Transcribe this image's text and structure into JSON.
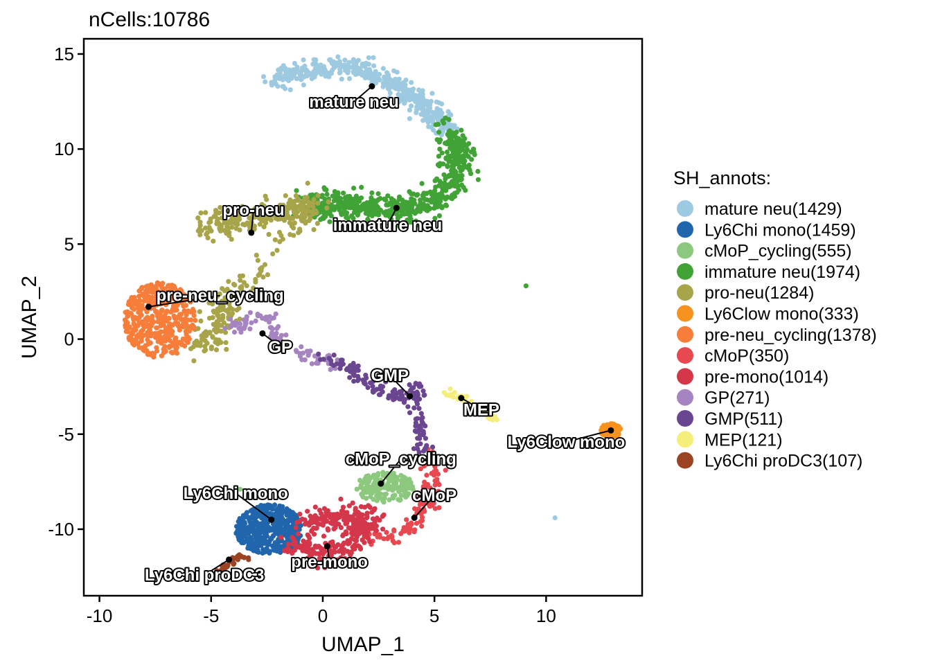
{
  "chart_data": {
    "type": "scatter",
    "title": "nCells:10786",
    "xlabel": "UMAP_1",
    "ylabel": "UMAP_2",
    "xlim": [
      -10.7,
      14.3
    ],
    "ylim": [
      -13.5,
      15.8
    ],
    "xticks": [
      -10,
      -5,
      0,
      5,
      10
    ],
    "yticks": [
      -10,
      -5,
      0,
      5,
      10,
      15
    ],
    "xtick_labels": [
      "-10",
      "-5",
      "0",
      "5",
      "10"
    ],
    "ytick_labels": [
      "-10",
      "-5",
      "0",
      "5",
      "10",
      "15"
    ],
    "legend": {
      "title": "SH_annots:",
      "placement": "right"
    },
    "clusters": [
      {
        "name": "mature neu",
        "legend_label": "mature neu(1429)",
        "count": 1429,
        "color": "#9ECAE1",
        "center": [
          2.2,
          13.3
        ],
        "label_pos": [
          1.4,
          12.2
        ],
        "path": [
          [
            -2.2,
            13.5
          ],
          [
            -1,
            14
          ],
          [
            0.5,
            14.3
          ],
          [
            1.8,
            14.2
          ],
          [
            3,
            13.6
          ],
          [
            4,
            12.8
          ],
          [
            5,
            11.9
          ],
          [
            5.6,
            11
          ]
        ],
        "spread": 0.45
      },
      {
        "name": "Ly6Chi mono",
        "legend_label": "Ly6Chi mono(1459)",
        "count": 1459,
        "color": "#2166AC",
        "center": [
          -2.3,
          -9.5
        ],
        "label_pos": [
          -3.9,
          -8.4
        ],
        "blob": [
          -2.4,
          -10.0,
          1.5,
          1.3
        ]
      },
      {
        "name": "cMoP_cycling",
        "legend_label": "cMoP_cycling(555)",
        "count": 555,
        "color": "#8CC87E",
        "center": [
          2.6,
          -7.6
        ],
        "label_pos": [
          3.5,
          -6.6
        ],
        "blob": [
          2.8,
          -7.8,
          1.3,
          0.8
        ]
      },
      {
        "name": "immature neu",
        "legend_label": "immature neu(1974)",
        "count": 1974,
        "color": "#41A336",
        "center": [
          3.3,
          6.9
        ],
        "label_pos": [
          2.9,
          5.7
        ],
        "path": [
          [
            -0.8,
            7
          ],
          [
            0.5,
            7.1
          ],
          [
            2,
            6.9
          ],
          [
            3.5,
            6.8
          ],
          [
            5,
            7.3
          ],
          [
            6,
            8.5
          ],
          [
            6.1,
            9.8
          ],
          [
            5.6,
            10.9
          ]
        ],
        "spread": 0.6
      },
      {
        "name": "pro-neu",
        "legend_label": "pro-neu(1284)",
        "count": 1284,
        "color": "#A8A44A",
        "center": [
          -3.2,
          5.6
        ],
        "label_pos": [
          -3.1,
          6.5
        ],
        "path": [
          [
            -5.5,
            5.8
          ],
          [
            -4,
            6.2
          ],
          [
            -2.5,
            6.5
          ],
          [
            -1.2,
            6.8
          ],
          [
            -0.5,
            7
          ],
          [
            -4.5,
            1.5
          ],
          [
            -5.5,
            -0.5
          ],
          [
            -3.8,
            2.5
          ]
        ],
        "spread": 0.6
      },
      {
        "name": "Ly6Clow mono",
        "legend_label": "Ly6Clow mono(333)",
        "count": 333,
        "color": "#F7921E",
        "center": [
          12.9,
          -4.8
        ],
        "label_pos": [
          10.9,
          -5.7
        ],
        "blob": [
          12.9,
          -4.8,
          0.5,
          0.35
        ]
      },
      {
        "name": "pre-neu_cycling",
        "legend_label": "pre-neu_cycling(1378)",
        "count": 1378,
        "color": "#F77E3A",
        "center": [
          -7.8,
          1.7
        ],
        "label_pos": [
          -4.6,
          2.0
        ],
        "blob": [
          -7.3,
          1.0,
          1.6,
          2.0
        ]
      },
      {
        "name": "cMoP",
        "legend_label": "cMoP(350)",
        "count": 350,
        "color": "#E8484F",
        "center": [
          4.1,
          -9.4
        ],
        "label_pos": [
          5.0,
          -8.5
        ],
        "path": [
          [
            4.8,
            -6
          ],
          [
            5,
            -7.2
          ],
          [
            4.7,
            -8.5
          ],
          [
            4.2,
            -9.5
          ],
          [
            3.5,
            -10.2
          ],
          [
            2.2,
            -10.5
          ]
        ],
        "spread": 0.35
      },
      {
        "name": "pre-mono",
        "legend_label": "pre-mono(1014)",
        "count": 1014,
        "color": "#D4364A",
        "center": [
          0.2,
          -10.9
        ],
        "label_pos": [
          0.3,
          -12.0
        ],
        "path": [
          [
            -1.4,
            -10.8
          ],
          [
            -0.3,
            -11.3
          ],
          [
            1,
            -11
          ],
          [
            1.8,
            -10
          ],
          [
            1.5,
            -9.2
          ],
          [
            -1,
            -9.6
          ],
          [
            2.8,
            -9.6
          ]
        ],
        "spread": 0.55
      },
      {
        "name": "GP",
        "legend_label": "GP(271)",
        "count": 271,
        "color": "#A584C1",
        "center": [
          -2.7,
          0.3
        ],
        "label_pos": [
          -1.9,
          -0.7
        ],
        "path": [
          [
            -4.4,
            0.6
          ],
          [
            -3.3,
            0.9
          ],
          [
            -2.5,
            1.2
          ],
          [
            -2.2,
            0.4
          ],
          [
            -1.5,
            -0.6
          ],
          [
            -0.5,
            -1
          ],
          [
            0.3,
            -1.2
          ]
        ],
        "spread": 0.35
      },
      {
        "name": "GMP",
        "legend_label": "GMP(511)",
        "count": 511,
        "color": "#6B4690",
        "center": [
          3.9,
          -3.0
        ],
        "label_pos": [
          3.0,
          -2.2
        ],
        "path": [
          [
            0,
            -1
          ],
          [
            1.2,
            -1.6
          ],
          [
            2.2,
            -2.4
          ],
          [
            3,
            -2.8
          ],
          [
            3.9,
            -3.2
          ],
          [
            4.3,
            -2.4
          ],
          [
            4.3,
            -4.2
          ],
          [
            4.4,
            -5.3
          ],
          [
            4.5,
            -6.2
          ]
        ],
        "spread": 0.3
      },
      {
        "name": "MEP",
        "legend_label": "MEP(121)",
        "count": 121,
        "color": "#F6EE7A",
        "center": [
          6.2,
          -3.1
        ],
        "label_pos": [
          7.1,
          -4.0
        ],
        "path": [
          [
            5.3,
            -2.7
          ],
          [
            6.2,
            -3.1
          ],
          [
            7.1,
            -3.5
          ],
          [
            7.8,
            -4.2
          ]
        ],
        "spread": 0.18
      },
      {
        "name": "Ly6Chi proDC3",
        "legend_label": "Ly6Chi proDC3(107)",
        "count": 107,
        "color": "#9B4424",
        "center": [
          -4.2,
          -11.6
        ],
        "label_pos": [
          -5.3,
          -12.7
        ],
        "path": [
          [
            -4.6,
            -12.1
          ],
          [
            -4.3,
            -11.8
          ],
          [
            -3.9,
            -11.5
          ],
          [
            -3.4,
            -11.4
          ]
        ],
        "spread": 0.15
      }
    ],
    "outliers": [
      {
        "x": 9.1,
        "y": 2.8,
        "cluster": "immature neu"
      },
      {
        "x": 10.4,
        "y": -9.4,
        "cluster": "mature neu"
      },
      {
        "x": -3.7,
        "y": -7.9,
        "cluster": "cMoP_cycling"
      }
    ]
  }
}
